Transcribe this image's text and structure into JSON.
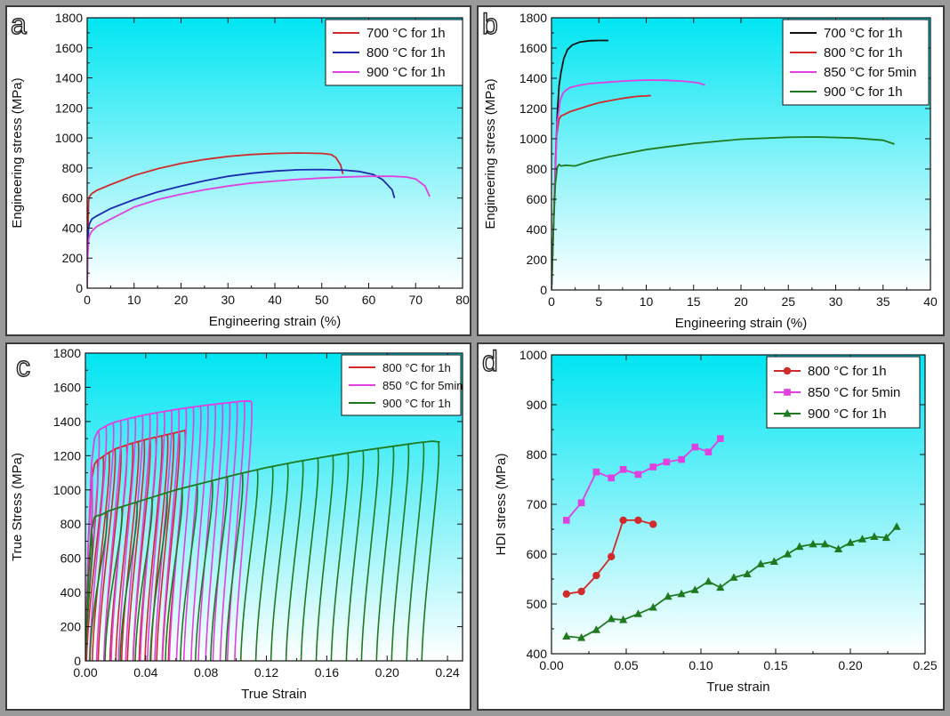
{
  "chart_data": [
    {
      "panel": "a",
      "type": "line",
      "xlabel": "Engineering strain (%)",
      "ylabel": "Engineering stress (MPa)",
      "xlim": [
        0,
        80
      ],
      "ylim": [
        0,
        1800
      ],
      "xticks": [
        0,
        10,
        20,
        30,
        40,
        50,
        60,
        70,
        80
      ],
      "yticks": [
        0,
        200,
        400,
        600,
        800,
        1000,
        1200,
        1400,
        1600,
        1800
      ],
      "legend": "top-right",
      "series": [
        {
          "name": "700 °C for 1h",
          "color": "#d12a2a",
          "x": [
            0,
            0.1,
            0.3,
            0.5,
            1,
            2,
            5,
            10,
            15,
            20,
            25,
            30,
            35,
            40,
            45,
            50,
            52,
            53,
            54,
            54.5
          ],
          "y": [
            0,
            300,
            580,
            610,
            630,
            650,
            690,
            750,
            795,
            830,
            857,
            877,
            890,
            897,
            900,
            897,
            890,
            870,
            820,
            760
          ]
        },
        {
          "name": "800 °C for 1h",
          "color": "#1c2bb0",
          "x": [
            0,
            0.1,
            0.3,
            0.5,
            1,
            2,
            5,
            10,
            15,
            20,
            25,
            30,
            35,
            40,
            45,
            50,
            55,
            58,
            61,
            63,
            65,
            65.5
          ],
          "y": [
            0,
            250,
            400,
            430,
            460,
            480,
            530,
            590,
            640,
            680,
            715,
            745,
            765,
            780,
            788,
            790,
            785,
            777,
            757,
            722,
            655,
            600
          ]
        },
        {
          "name": "900 °C for 1h",
          "color": "#e040e0",
          "x": [
            0,
            0.1,
            0.3,
            0.5,
            1,
            2,
            5,
            10,
            15,
            20,
            25,
            30,
            35,
            40,
            45,
            50,
            55,
            60,
            65,
            68,
            70,
            72,
            73
          ],
          "y": [
            0,
            200,
            320,
            350,
            380,
            410,
            460,
            540,
            590,
            625,
            655,
            680,
            700,
            713,
            725,
            733,
            740,
            745,
            745,
            740,
            727,
            680,
            610
          ]
        }
      ]
    },
    {
      "panel": "b",
      "type": "line",
      "xlabel": "Engineering strain (%)",
      "ylabel": "Engineering stress (MPa)",
      "xlim": [
        0,
        40
      ],
      "ylim": [
        0,
        1800
      ],
      "xticks": [
        0,
        5,
        10,
        15,
        20,
        25,
        30,
        35,
        40
      ],
      "yticks": [
        0,
        200,
        400,
        600,
        800,
        1000,
        1200,
        1400,
        1600,
        1800
      ],
      "legend": "top-right",
      "series": [
        {
          "name": "700 °C for 1h",
          "color": "#111111",
          "x": [
            0,
            0.3,
            0.6,
            0.8,
            1,
            1.3,
            1.7,
            2.2,
            3,
            4,
            5,
            6
          ],
          "y": [
            0,
            600,
            1150,
            1350,
            1440,
            1530,
            1590,
            1620,
            1640,
            1648,
            1650,
            1650
          ]
        },
        {
          "name": "800 °C for 1h",
          "color": "#d12a2a",
          "x": [
            0,
            0.3,
            0.5,
            0.8,
            1,
            2,
            3,
            4,
            5,
            6,
            7,
            8,
            9,
            10.5
          ],
          "y": [
            0,
            600,
            1000,
            1130,
            1150,
            1180,
            1200,
            1220,
            1238,
            1250,
            1262,
            1272,
            1280,
            1285
          ]
        },
        {
          "name": "850 °C for 5min",
          "color": "#e040e0",
          "x": [
            0,
            0.3,
            0.6,
            0.9,
            1.2,
            1.5,
            2,
            3,
            4,
            6,
            8,
            10,
            12,
            14,
            15.5,
            16.2
          ],
          "y": [
            0,
            600,
            1100,
            1250,
            1300,
            1320,
            1340,
            1355,
            1365,
            1375,
            1383,
            1388,
            1387,
            1380,
            1370,
            1355
          ]
        },
        {
          "name": "900 °C for 1h",
          "color": "#1f7a1f",
          "x": [
            0,
            0.2,
            0.4,
            0.6,
            0.8,
            1,
            1.5,
            2.5,
            4,
            6,
            8,
            10,
            12,
            15,
            20,
            25,
            28,
            32,
            35,
            36.2
          ],
          "y": [
            0,
            400,
            700,
            810,
            830,
            820,
            825,
            820,
            850,
            880,
            905,
            928,
            945,
            968,
            997,
            1010,
            1012,
            1005,
            990,
            965
          ]
        }
      ]
    },
    {
      "panel": "c",
      "type": "line",
      "xlabel": "True Strain",
      "ylabel": "True Stress (MPa)",
      "xlim": [
        0,
        0.25
      ],
      "ylim": [
        0,
        1800
      ],
      "xticks": [
        0.0,
        0.04,
        0.08,
        0.12,
        0.16,
        0.2,
        0.24
      ],
      "xtick_labels": [
        "0.00",
        "0.04",
        "0.08",
        "0.12",
        "0.16",
        "0.20",
        "0.24"
      ],
      "yticks": [
        0,
        200,
        400,
        600,
        800,
        1000,
        1200,
        1400,
        1600,
        1800
      ],
      "legend": "top-right",
      "series": [
        {
          "name": "800 °C for 1h",
          "color": "#d12a2a",
          "x": [
            0,
            0.002,
            0.004,
            0.006,
            0.008,
            0.01,
            0.015,
            0.02,
            0.03,
            0.04,
            0.05,
            0.06,
            0.067
          ],
          "y": [
            0,
            700,
            1050,
            1150,
            1175,
            1185,
            1215,
            1240,
            1270,
            1295,
            1315,
            1335,
            1350
          ],
          "cycles": {
            "count": 17,
            "start": 0.004,
            "end": 0.066
          }
        },
        {
          "name": "850 °C for 5min",
          "color": "#e040e0",
          "x": [
            0,
            0.002,
            0.004,
            0.006,
            0.008,
            0.01,
            0.015,
            0.02,
            0.03,
            0.04,
            0.05,
            0.06,
            0.07,
            0.08,
            0.09,
            0.1,
            0.105,
            0.11
          ],
          "y": [
            0,
            700,
            1150,
            1300,
            1340,
            1355,
            1380,
            1398,
            1420,
            1440,
            1455,
            1470,
            1483,
            1495,
            1505,
            1515,
            1520,
            1518
          ],
          "cycles": {
            "count": 23,
            "start": 0.004,
            "end": 0.11
          }
        },
        {
          "name": "900 °C for 1h",
          "color": "#1f7a1f",
          "x": [
            0,
            0.002,
            0.004,
            0.006,
            0.008,
            0.01,
            0.015,
            0.02,
            0.04,
            0.06,
            0.08,
            0.1,
            0.12,
            0.14,
            0.16,
            0.18,
            0.2,
            0.22,
            0.23,
            0.235
          ],
          "y": [
            0,
            500,
            760,
            840,
            850,
            852,
            875,
            890,
            945,
            1000,
            1045,
            1090,
            1130,
            1165,
            1195,
            1225,
            1250,
            1275,
            1285,
            1280
          ],
          "cycles": {
            "count": 24,
            "start": 0.004,
            "end": 0.234
          }
        }
      ]
    },
    {
      "panel": "d",
      "type": "line",
      "xlabel": "True strain",
      "ylabel": "HDI stress (MPa)",
      "xlim": [
        0,
        0.25
      ],
      "ylim": [
        400,
        1000
      ],
      "xticks": [
        0.0,
        0.05,
        0.1,
        0.15,
        0.2,
        0.25
      ],
      "xtick_labels": [
        "0.00",
        "0.05",
        "0.10",
        "0.15",
        "0.20",
        "0.25"
      ],
      "yticks": [
        400,
        500,
        600,
        700,
        800,
        900,
        1000
      ],
      "legend": "top-right",
      "series": [
        {
          "name": "800 °C for 1h",
          "color": "#d12a2a",
          "marker": "circle",
          "x": [
            0.01,
            0.02,
            0.03,
            0.04,
            0.048,
            0.058,
            0.068
          ],
          "y": [
            520,
            525,
            557,
            595,
            668,
            668,
            660
          ]
        },
        {
          "name": "850 °C for 5min",
          "color": "#e040e0",
          "marker": "square",
          "x": [
            0.01,
            0.02,
            0.03,
            0.04,
            0.048,
            0.058,
            0.068,
            0.077,
            0.087,
            0.096,
            0.105,
            0.113
          ],
          "y": [
            668,
            703,
            765,
            753,
            770,
            760,
            775,
            785,
            790,
            815,
            805,
            832
          ]
        },
        {
          "name": "900 °C for 1h",
          "color": "#1f7a1f",
          "marker": "triangle",
          "x": [
            0.01,
            0.02,
            0.03,
            0.04,
            0.048,
            0.058,
            0.068,
            0.078,
            0.087,
            0.096,
            0.105,
            0.113,
            0.122,
            0.131,
            0.14,
            0.149,
            0.158,
            0.166,
            0.175,
            0.183,
            0.192,
            0.2,
            0.208,
            0.216,
            0.224,
            0.231
          ],
          "y": [
            435,
            432,
            448,
            470,
            468,
            480,
            493,
            515,
            520,
            528,
            545,
            533,
            553,
            560,
            580,
            585,
            600,
            615,
            620,
            620,
            610,
            623,
            630,
            635,
            633,
            655
          ]
        }
      ]
    }
  ]
}
